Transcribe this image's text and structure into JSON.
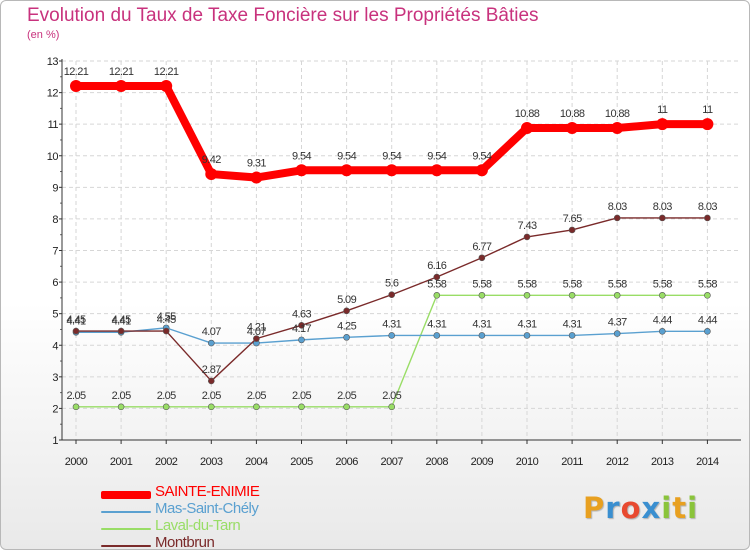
{
  "chart_data": {
    "type": "line",
    "title": "Evolution du Taux de Taxe Foncière sur les Propriétés Bâties",
    "unit_label": "(en %)",
    "categories": [
      "2000",
      "2001",
      "2002",
      "2003",
      "2004",
      "2005",
      "2006",
      "2007",
      "2008",
      "2009",
      "2010",
      "2011",
      "2012",
      "2013",
      "2014"
    ],
    "ylim": [
      1,
      13
    ],
    "yticks": [
      "1",
      "2",
      "3",
      "4",
      "5",
      "6",
      "7",
      "8",
      "9",
      "10",
      "11",
      "12",
      "13"
    ],
    "series": [
      {
        "name": "SAINTE-ENIMIE",
        "color": "#ff0000",
        "values": [
          12.21,
          12.21,
          12.21,
          9.42,
          9.31,
          9.54,
          9.54,
          9.54,
          9.54,
          9.54,
          10.88,
          10.88,
          10.88,
          11,
          11
        ],
        "labels": [
          "12.21",
          "12.21",
          "12.21",
          "9.42",
          "9.31",
          "9.54",
          "9.54",
          "9.54",
          "9.54",
          "9.54",
          "10.88",
          "10.88",
          "10.88",
          "11",
          "11"
        ]
      },
      {
        "name": "Mas-Saint-Chély",
        "color": "#5aa0d0",
        "values": [
          4.41,
          4.41,
          4.55,
          4.07,
          4.07,
          4.17,
          4.25,
          4.31,
          4.31,
          4.31,
          4.31,
          4.31,
          4.37,
          4.44,
          4.44
        ],
        "labels": [
          "4.41",
          "4.41",
          "4.55",
          "4.07",
          "4.07",
          "4.17",
          "4.25",
          "4.31",
          "4.31",
          "4.31",
          "4.31",
          "4.31",
          "4.37",
          "4.44",
          "4.44"
        ]
      },
      {
        "name": "Laval-du-Tarn",
        "color": "#99dd66",
        "values": [
          2.05,
          2.05,
          2.05,
          2.05,
          2.05,
          2.05,
          2.05,
          2.05,
          5.58,
          5.58,
          5.58,
          5.58,
          5.58,
          5.58,
          5.58
        ],
        "labels": [
          "2.05",
          "2.05",
          "2.05",
          "2.05",
          "2.05",
          "2.05",
          "2.05",
          "2.05",
          "5.58",
          "5.58",
          "5.58",
          "5.58",
          "5.58",
          "5.58",
          "5.58"
        ]
      },
      {
        "name": "Montbrun",
        "color": "#7a2a2a",
        "values": [
          4.45,
          4.45,
          4.45,
          2.87,
          4.21,
          4.63,
          5.09,
          5.6,
          6.16,
          6.77,
          7.43,
          7.65,
          8.03,
          8.03,
          8.03
        ],
        "labels": [
          "4.45",
          "4.45",
          "4.45",
          "2.87",
          "4.21",
          "4.63",
          "5.09",
          "5.6",
          "6.16",
          "6.77",
          "7.43",
          "7.65",
          "8.03",
          "8.03",
          "8.03"
        ]
      }
    ]
  },
  "legend": [
    {
      "label": "SAINTE-ENIMIE",
      "color": "#ff0000"
    },
    {
      "label": "Mas-Saint-Chély",
      "color": "#5aa0d0"
    },
    {
      "label": "Laval-du-Tarn",
      "color": "#99dd66"
    },
    {
      "label": "Montbrun",
      "color": "#7a2a2a"
    }
  ],
  "logo": {
    "letters": [
      "P",
      "r",
      "o",
      "x",
      "i",
      "t",
      "i"
    ],
    "colors": [
      "#e8a020",
      "#3a8fd0",
      "#e84a30",
      "#3a8fd0",
      "#8ac43a",
      "#e8a020",
      "#8ac43a"
    ]
  }
}
